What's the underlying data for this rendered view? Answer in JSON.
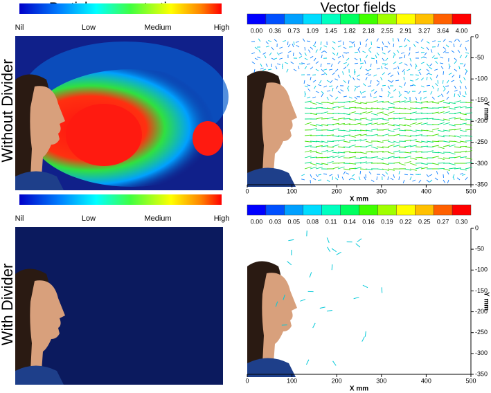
{
  "columns": {
    "left": "Particle concentrations",
    "right": "Vector fields"
  },
  "rows": [
    {
      "label": "Without Divider",
      "concentration_scale": [
        "Nil",
        "Low",
        "Medium",
        "High"
      ],
      "vector_scale": [
        "0.00",
        "0.36",
        "0.73",
        "1.09",
        "1.45",
        "1.82",
        "2.18",
        "2.55",
        "2.91",
        "3.27",
        "3.64",
        "4.00"
      ],
      "x_axis": {
        "label": "X mm",
        "ticks": [
          "0",
          "100",
          "200",
          "300",
          "400",
          "500"
        ]
      },
      "y_axis": {
        "label": "Y mm",
        "ticks": [
          "0",
          "-50",
          "-100",
          "-150",
          "-200",
          "-250",
          "-300",
          "-350"
        ]
      }
    },
    {
      "label": "With Divider",
      "concentration_scale": [
        "Nil",
        "Low",
        "Medium",
        "High"
      ],
      "vector_scale": [
        "0.00",
        "0.03",
        "0.05",
        "0.08",
        "0.11",
        "0.14",
        "0.16",
        "0.19",
        "0.22",
        "0.25",
        "0.27",
        "0.30"
      ],
      "x_axis": {
        "label": "X mm",
        "ticks": [
          "0",
          "100",
          "200",
          "300",
          "400",
          "500"
        ]
      },
      "y_axis": {
        "label": "Y mm",
        "ticks": [
          "0",
          "-50",
          "-100",
          "-150",
          "-200",
          "-250",
          "-300",
          "-350"
        ]
      }
    }
  ]
}
